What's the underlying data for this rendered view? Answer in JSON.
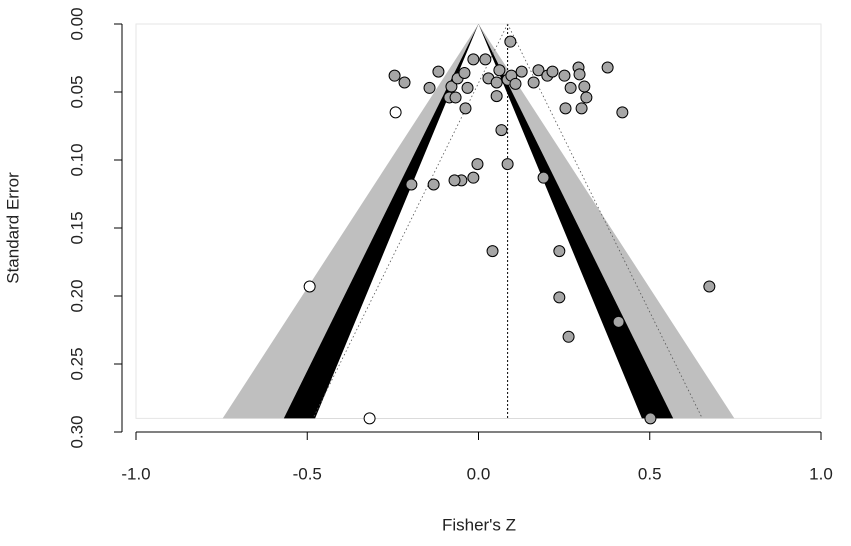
{
  "chart_data": {
    "type": "funnel",
    "xlabel": "Fisher's Z",
    "ylabel": "Standard Error",
    "xlim": [
      -1,
      1
    ],
    "ylim": [
      0,
      0.3
    ],
    "xticks": [
      {
        "value": -1,
        "label": "-1.0"
      },
      {
        "value": -0.5,
        "label": "-0.5"
      },
      {
        "value": 0,
        "label": "0.0"
      },
      {
        "value": 0.5,
        "label": "0.5"
      },
      {
        "value": 1,
        "label": "1.0"
      }
    ],
    "yticks": [
      {
        "value": 0,
        "label": "0.00"
      },
      {
        "value": 0.05,
        "label": "0.05"
      },
      {
        "value": 0.1,
        "label": "0.10"
      },
      {
        "value": 0.15,
        "label": "0.15"
      },
      {
        "value": 0.2,
        "label": "0.20"
      },
      {
        "value": 0.25,
        "label": "0.25"
      },
      {
        "value": 0.3,
        "label": "0.30"
      }
    ],
    "se_max": 0.29,
    "estimate": 0.085,
    "contours": [
      {
        "z": 2.576,
        "color": "#bfbfbf"
      },
      {
        "z": 1.96,
        "color": "#000000"
      },
      {
        "z": 1.645,
        "color": "#ffffff"
      }
    ],
    "series": [
      {
        "color": "#a6a6a6",
        "x": [
          0.093,
          -0.245,
          -0.216,
          -0.117,
          -0.143,
          -0.079,
          -0.061,
          -0.041,
          -0.015,
          0.02,
          -0.032,
          -0.085,
          -0.067,
          -0.038,
          0.029,
          0.053,
          0.061,
          0.053,
          0.085,
          0.096,
          0.108,
          0.126,
          0.161,
          0.175,
          0.201,
          0.216,
          0.251,
          0.292,
          0.295,
          0.309,
          0.315,
          0.269,
          0.254,
          0.301,
          0.377,
          0.42,
          0.067,
          0.085,
          -0.003,
          -0.015,
          -0.05,
          -0.07,
          -0.131,
          -0.196,
          0.19,
          0.041,
          0.236,
          0.236,
          0.263,
          0.409,
          0.674,
          0.502
        ],
        "values": [
          0.013,
          0.038,
          0.043,
          0.035,
          0.047,
          0.046,
          0.04,
          0.036,
          0.026,
          0.026,
          0.047,
          0.054,
          0.054,
          0.062,
          0.04,
          0.043,
          0.034,
          0.053,
          0.041,
          0.038,
          0.044,
          0.035,
          0.043,
          0.034,
          0.038,
          0.035,
          0.038,
          0.032,
          0.037,
          0.046,
          0.054,
          0.047,
          0.062,
          0.062,
          0.032,
          0.065,
          0.078,
          0.103,
          0.103,
          0.113,
          0.115,
          0.115,
          0.118,
          0.118,
          0.113,
          0.167,
          0.167,
          0.201,
          0.23,
          0.219,
          0.193,
          0.29
        ]
      },
      {
        "color": "#ffffff",
        "x": [
          -0.242,
          -0.493,
          -0.318
        ],
        "values": [
          0.065,
          0.193,
          0.29
        ]
      }
    ]
  }
}
